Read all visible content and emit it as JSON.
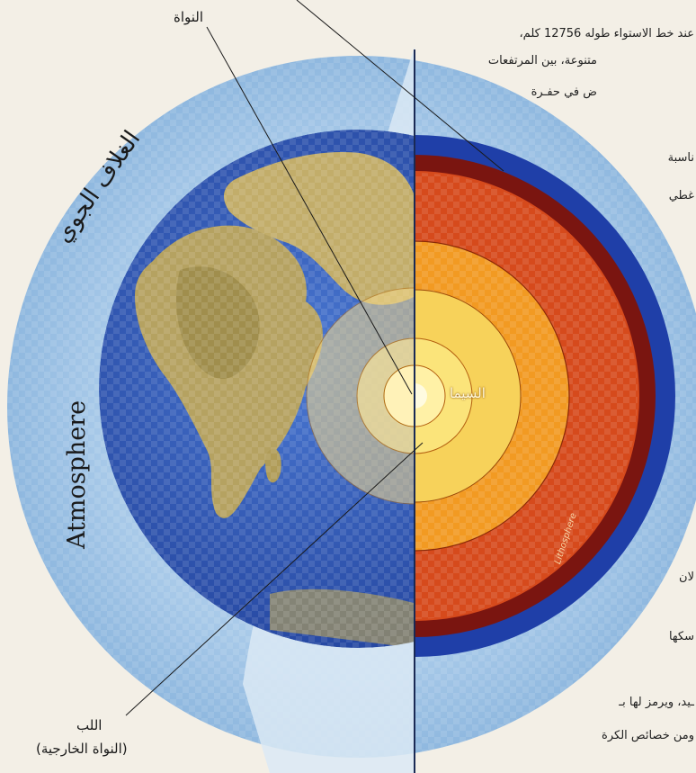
{
  "labels": {
    "core": "النواة",
    "sima": "السيما",
    "inner_core": "اللب",
    "outer_core": "(النواة الخارجية)",
    "atmosphere_ar": "الغلاف الجوي",
    "atmosphere_en": "Atmosphere",
    "lithosphere": "Lithosphere"
  },
  "side_text": {
    "line1": "عند خط الاستواء طوله 12756 كلم،",
    "line2": "متنوعة، بين المرتفعات",
    "line3": "ض في حفـرة",
    "line4": "ناسبة",
    "line5": "غطي",
    "line6": "لان",
    "line7": "سكها",
    "line8": "ـيد، ويرمز لها بـ",
    "line9": "ومن خصائص الكرة"
  },
  "colors": {
    "background": "#f3efe6",
    "atmosphere": "#a9cbe8",
    "ocean": "#2f55b5",
    "land": "#a39352",
    "mantle": "#d84a1a",
    "outer_core": "#f29a1e",
    "inner_core": "#fbe36a"
  }
}
